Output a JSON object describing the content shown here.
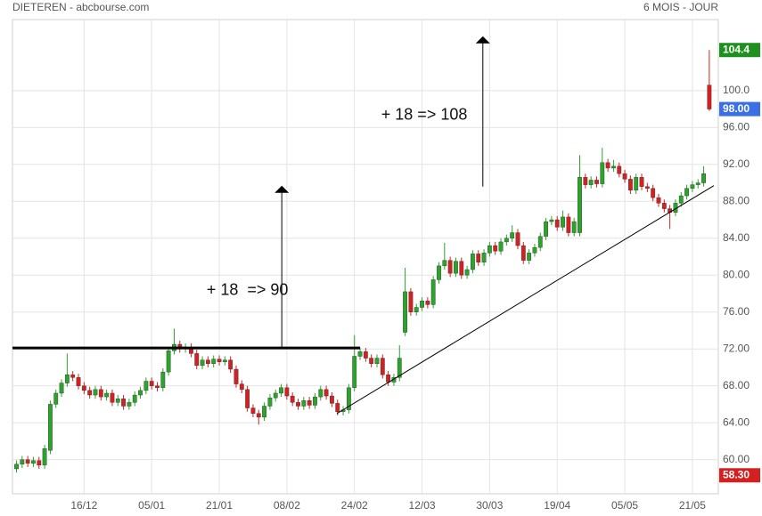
{
  "chart_data": {
    "type": "candlestick",
    "title": "DIETEREN - abcbourse.com",
    "subtitle": "6 MOIS - JOUR",
    "categories": [
      null,
      null,
      null,
      null,
      null,
      null,
      null,
      null,
      null,
      null,
      null,
      null,
      "16/12",
      null,
      null,
      null,
      null,
      null,
      null,
      null,
      null,
      null,
      null,
      null,
      "05/01",
      null,
      null,
      null,
      null,
      null,
      null,
      null,
      null,
      null,
      null,
      null,
      "21/01",
      null,
      null,
      null,
      null,
      null,
      null,
      null,
      null,
      null,
      null,
      null,
      "08/02",
      null,
      null,
      null,
      null,
      null,
      null,
      null,
      null,
      null,
      null,
      null,
      "24/02",
      null,
      null,
      null,
      null,
      null,
      null,
      null,
      null,
      null,
      null,
      null,
      "12/03",
      null,
      null,
      null,
      null,
      null,
      null,
      null,
      null,
      null,
      null,
      null,
      "30/03",
      null,
      null,
      null,
      null,
      null,
      null,
      null,
      null,
      null,
      null,
      null,
      "19/04",
      null,
      null,
      null,
      null,
      null,
      null,
      null,
      null,
      null,
      null,
      null,
      "05/05",
      null,
      null,
      null,
      null,
      null,
      null,
      null,
      null,
      null,
      null,
      null,
      "21/05",
      null,
      null,
      null
    ],
    "open": [
      59.0,
      59.5,
      60.0,
      59.6,
      59.9,
      59.4,
      61.0,
      66.0,
      67.2,
      68.3,
      69.2,
      68.9,
      68.0,
      67.5,
      67.0,
      67.6,
      66.8,
      67.2,
      66.2,
      66.6,
      65.8,
      66.2,
      67.0,
      67.5,
      68.5,
      68.0,
      67.8,
      69.5,
      71.8,
      72.5,
      72.0,
      72.2,
      71.5,
      70.2,
      70.8,
      70.4,
      70.9,
      70.6,
      70.8,
      69.8,
      68.2,
      67.6,
      65.6,
      65.0,
      64.6,
      65.8,
      66.7,
      67.2,
      67.8,
      66.9,
      66.2,
      65.8,
      66.4,
      65.9,
      66.8,
      67.6,
      66.9,
      66.1,
      65.2,
      65.4,
      67.8,
      71.2,
      71.7,
      71.0,
      70.4,
      71.0,
      69.2,
      68.4,
      68.9,
      73.8,
      78.2,
      76.0,
      76.5,
      77.2,
      76.8,
      79.5,
      81.0,
      81.6,
      80.2,
      81.5,
      80.0,
      80.6,
      82.3,
      81.4,
      82.4,
      83.2,
      82.6,
      83.6,
      84.0,
      84.6,
      83.2,
      81.6,
      82.4,
      83.0,
      84.2,
      85.8,
      86.0,
      85.2,
      86.3,
      84.6,
      84.6,
      90.6,
      89.8,
      90.3,
      89.9,
      92.2,
      91.6,
      91.8,
      91.0,
      90.4,
      89.2,
      90.6,
      89.6,
      89.4,
      88.4,
      87.8,
      87.2,
      86.8,
      87.8,
      88.6,
      89.4,
      89.8,
      90.0,
      100.6
    ],
    "high": [
      59.9,
      60.4,
      60.4,
      60.3,
      60.3,
      61.6,
      66.4,
      67.6,
      68.7,
      71.5,
      69.6,
      69.3,
      68.4,
      67.9,
      68.0,
      68.0,
      67.6,
      67.6,
      67.0,
      67.0,
      66.6,
      67.4,
      67.9,
      68.9,
      68.9,
      68.4,
      69.9,
      72.2,
      74.2,
      72.9,
      72.6,
      72.6,
      71.9,
      71.2,
      71.2,
      71.3,
      71.3,
      71.2,
      71.2,
      70.2,
      68.6,
      68.0,
      66.0,
      65.4,
      66.2,
      67.1,
      67.6,
      68.2,
      68.2,
      67.3,
      66.6,
      66.8,
      66.8,
      67.2,
      68.0,
      68.0,
      67.3,
      66.5,
      65.8,
      68.2,
      73.5,
      72.1,
      72.1,
      71.4,
      71.4,
      71.4,
      69.6,
      69.3,
      72.4,
      80.8,
      78.6,
      76.9,
      77.6,
      77.6,
      79.9,
      81.4,
      83.5,
      82.0,
      81.9,
      81.9,
      81.0,
      82.7,
      82.7,
      82.8,
      83.6,
      83.6,
      84.0,
      84.4,
      85.4,
      85.0,
      83.6,
      82.8,
      83.4,
      84.6,
      86.2,
      86.4,
      86.4,
      87.0,
      86.7,
      86.2,
      93.0,
      91.0,
      90.7,
      90.7,
      93.8,
      92.6,
      92.5,
      92.2,
      91.4,
      90.8,
      91.0,
      91.0,
      90.0,
      89.8,
      88.8,
      88.2,
      87.6,
      88.2,
      89.0,
      89.8,
      90.2,
      90.4,
      91.8,
      104.4
    ],
    "low": [
      58.6,
      59.1,
      59.2,
      59.2,
      59.0,
      59.0,
      60.6,
      65.6,
      66.8,
      67.9,
      68.5,
      67.6,
      67.1,
      66.6,
      66.6,
      66.4,
      66.4,
      65.8,
      65.8,
      65.4,
      65.4,
      65.8,
      66.6,
      67.1,
      67.6,
      67.4,
      67.4,
      69.1,
      71.4,
      71.6,
      71.6,
      71.1,
      69.8,
      69.8,
      70.0,
      70.0,
      70.2,
      70.2,
      69.4,
      67.8,
      67.2,
      65.2,
      64.6,
      63.8,
      64.2,
      65.4,
      66.3,
      66.8,
      66.5,
      65.8,
      65.4,
      65.4,
      65.5,
      65.5,
      66.4,
      66.5,
      65.7,
      64.8,
      64.8,
      65.0,
      67.4,
      70.8,
      70.6,
      70.0,
      70.0,
      68.8,
      68.0,
      68.0,
      68.5,
      73.4,
      75.6,
      75.6,
      76.1,
      76.4,
      76.4,
      79.1,
      80.6,
      79.8,
      79.8,
      79.6,
      79.6,
      80.2,
      81.0,
      81.0,
      82.0,
      82.2,
      82.2,
      83.2,
      83.6,
      82.8,
      81.2,
      81.2,
      82.0,
      82.6,
      83.8,
      85.4,
      84.8,
      84.8,
      84.2,
      84.2,
      84.2,
      89.4,
      89.4,
      89.5,
      89.5,
      91.2,
      91.2,
      90.6,
      90.0,
      88.8,
      88.8,
      89.2,
      89.0,
      88.0,
      87.4,
      86.8,
      85.0,
      86.4,
      87.4,
      88.2,
      89.0,
      89.4,
      89.6,
      97.8
    ],
    "close": [
      59.5,
      60.0,
      59.6,
      59.9,
      59.4,
      61.2,
      66.0,
      67.2,
      68.3,
      69.2,
      68.9,
      68.0,
      67.5,
      67.0,
      67.6,
      66.8,
      67.2,
      66.2,
      66.6,
      65.8,
      66.2,
      67.0,
      67.5,
      68.5,
      68.0,
      67.8,
      69.5,
      71.8,
      72.5,
      72.0,
      72.2,
      71.5,
      70.2,
      70.8,
      70.4,
      70.9,
      70.6,
      70.8,
      69.8,
      68.2,
      67.6,
      65.6,
      65.0,
      64.6,
      65.8,
      66.7,
      67.2,
      67.8,
      66.9,
      66.2,
      65.8,
      66.4,
      65.9,
      66.8,
      67.6,
      66.9,
      66.1,
      65.2,
      65.4,
      67.8,
      71.2,
      71.7,
      71.0,
      70.4,
      71.0,
      69.2,
      68.4,
      68.9,
      71.0,
      78.2,
      76.0,
      76.5,
      77.2,
      76.8,
      79.5,
      81.0,
      81.6,
      80.2,
      81.5,
      80.0,
      80.6,
      82.3,
      81.4,
      82.4,
      83.2,
      82.6,
      83.6,
      84.0,
      84.6,
      83.2,
      81.6,
      82.4,
      83.0,
      84.2,
      85.8,
      86.0,
      85.2,
      86.3,
      84.6,
      85.8,
      90.6,
      89.8,
      90.3,
      89.9,
      92.2,
      91.6,
      91.8,
      91.0,
      90.4,
      89.2,
      90.6,
      89.6,
      89.4,
      88.4,
      87.8,
      87.2,
      86.8,
      87.8,
      88.6,
      89.4,
      89.8,
      90.0,
      91.0,
      98.0
    ],
    "up_color": "#2aa52a",
    "down_color": "#d42020",
    "ylim": [
      56.3,
      107.7
    ],
    "yticks": [
      {
        "value": 60,
        "label": "60.00"
      },
      {
        "value": 64,
        "label": "64.00"
      },
      {
        "value": 68,
        "label": "68.00"
      },
      {
        "value": 72,
        "label": "72.00"
      },
      {
        "value": 76,
        "label": "76.00"
      },
      {
        "value": 80,
        "label": "80.00"
      },
      {
        "value": 84,
        "label": "84.00"
      },
      {
        "value": 88,
        "label": "88.00"
      },
      {
        "value": 92,
        "label": "92.00"
      },
      {
        "value": 96,
        "label": "96.00"
      },
      {
        "value": 100,
        "label": "100.0"
      }
    ],
    "grid": true,
    "price_badges": [
      {
        "value": 104.4,
        "label": "104.4",
        "color": "#1f8f1f"
      },
      {
        "value": 98.0,
        "label": "98.00",
        "color": "#3b6fe6"
      },
      {
        "value": 58.3,
        "label": "58.30",
        "color": "#d42020"
      }
    ],
    "annotations": [
      {
        "text": "+ 18  => 90",
        "x": 41,
        "y": 78.3
      },
      {
        "text": "+ 18 => 108",
        "x": 72.4,
        "y": 97.3
      }
    ],
    "drawn_lines": [
      {
        "kind": "resistance",
        "x": [
          -0.7,
          61.0
        ],
        "y": [
          72.1,
          72.1
        ],
        "width": 3
      },
      {
        "kind": "trend",
        "x": [
          56.9,
          123.8
        ],
        "y": [
          65.0,
          89.7
        ],
        "width": 1
      },
      {
        "kind": "arrow",
        "x": [
          47.1,
          47.1
        ],
        "y": [
          72.1,
          89.6
        ],
        "width": 1
      },
      {
        "kind": "arrow",
        "x": [
          82.8,
          82.8
        ],
        "y": [
          89.6,
          105.8
        ],
        "width": 1
      }
    ]
  }
}
